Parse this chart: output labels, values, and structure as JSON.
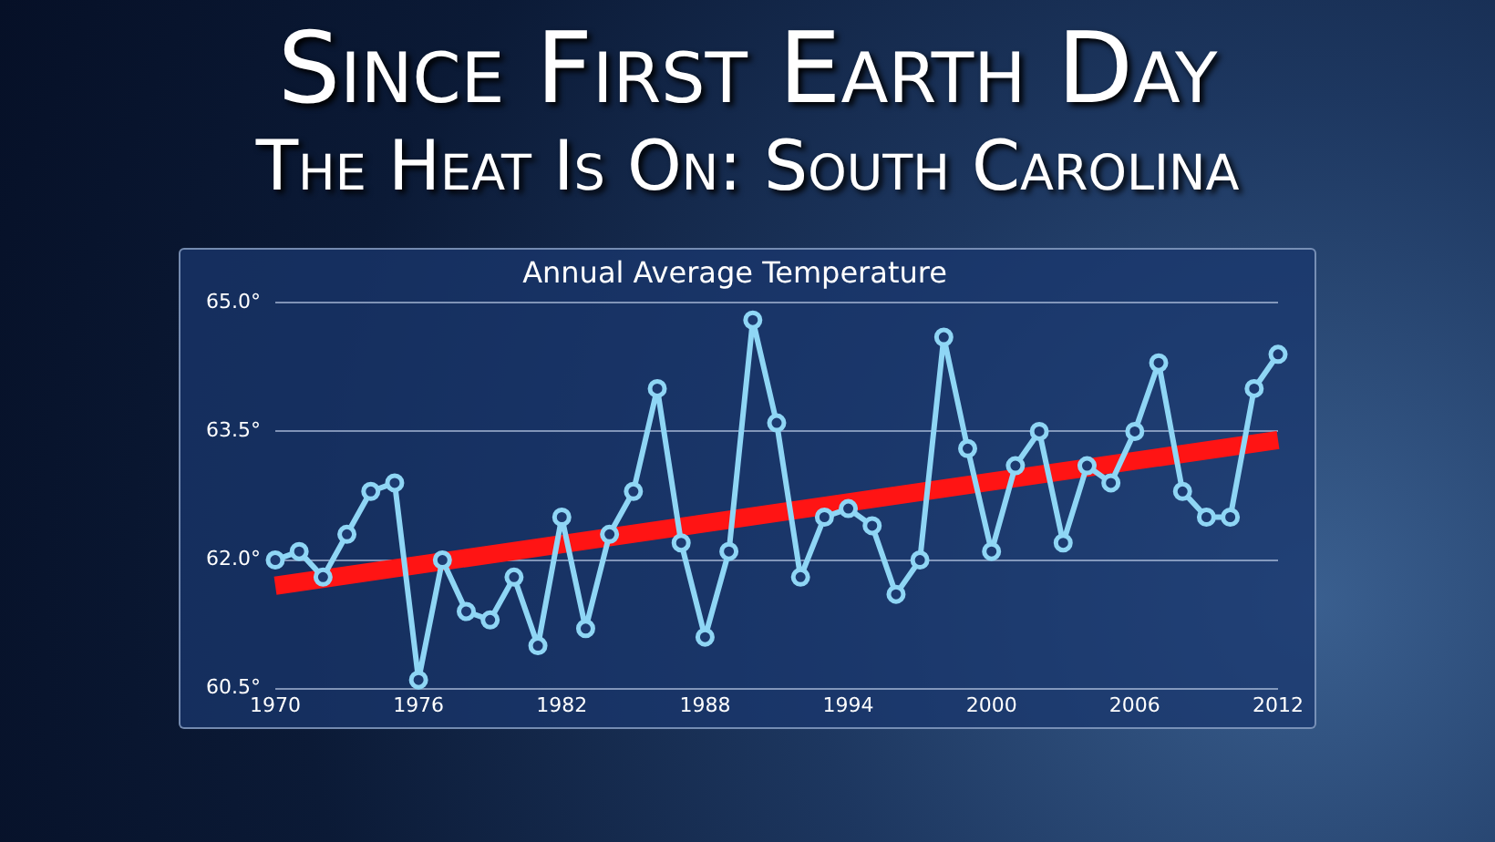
{
  "chart_data": {
    "type": "line",
    "title": "Since First Earth Day",
    "subtitle": "The Heat Is On: South Carolina",
    "annotations": [
      "Annual Average Temperature"
    ],
    "x": [
      1970,
      1971,
      1972,
      1973,
      1974,
      1975,
      1976,
      1977,
      1978,
      1979,
      1980,
      1981,
      1982,
      1983,
      1984,
      1985,
      1986,
      1987,
      1988,
      1989,
      1990,
      1991,
      1992,
      1993,
      1994,
      1995,
      1996,
      1997,
      1998,
      1999,
      2000,
      2001,
      2002,
      2003,
      2004,
      2005,
      2006,
      2007,
      2008,
      2009,
      2010,
      2011,
      2012
    ],
    "series": [
      {
        "color": "#8fd6f5",
        "marker": "circle",
        "values": [
          62.0,
          62.1,
          61.8,
          62.3,
          62.8,
          62.9,
          60.6,
          62.0,
          61.4,
          61.3,
          61.8,
          61.0,
          62.5,
          61.2,
          62.3,
          62.8,
          64.0,
          62.2,
          61.1,
          62.1,
          64.8,
          63.6,
          61.8,
          62.5,
          62.6,
          62.4,
          61.6,
          62.0,
          64.6,
          63.3,
          62.1,
          63.1,
          63.5,
          62.2,
          63.1,
          62.9,
          63.5,
          64.3,
          62.8,
          62.5,
          62.5,
          64.0,
          64.4
        ]
      },
      {
        "color": "#ff1414",
        "marker": "none",
        "x": [
          1970,
          2012
        ],
        "values": [
          61.7,
          63.4
        ]
      }
    ],
    "xlim": [
      1970,
      2012
    ],
    "xticks": [
      1970,
      1976,
      1982,
      1988,
      1994,
      2000,
      2006,
      2012
    ],
    "ylim": [
      60.5,
      65
    ],
    "yticks": [
      {
        "value": 60.5,
        "label": "60.5°"
      },
      {
        "value": 62,
        "label": "62.0°"
      },
      {
        "value": 63.5,
        "label": "63.5°"
      },
      {
        "value": 65,
        "label": "65.0°"
      }
    ],
    "grid": "y",
    "legend": false
  }
}
